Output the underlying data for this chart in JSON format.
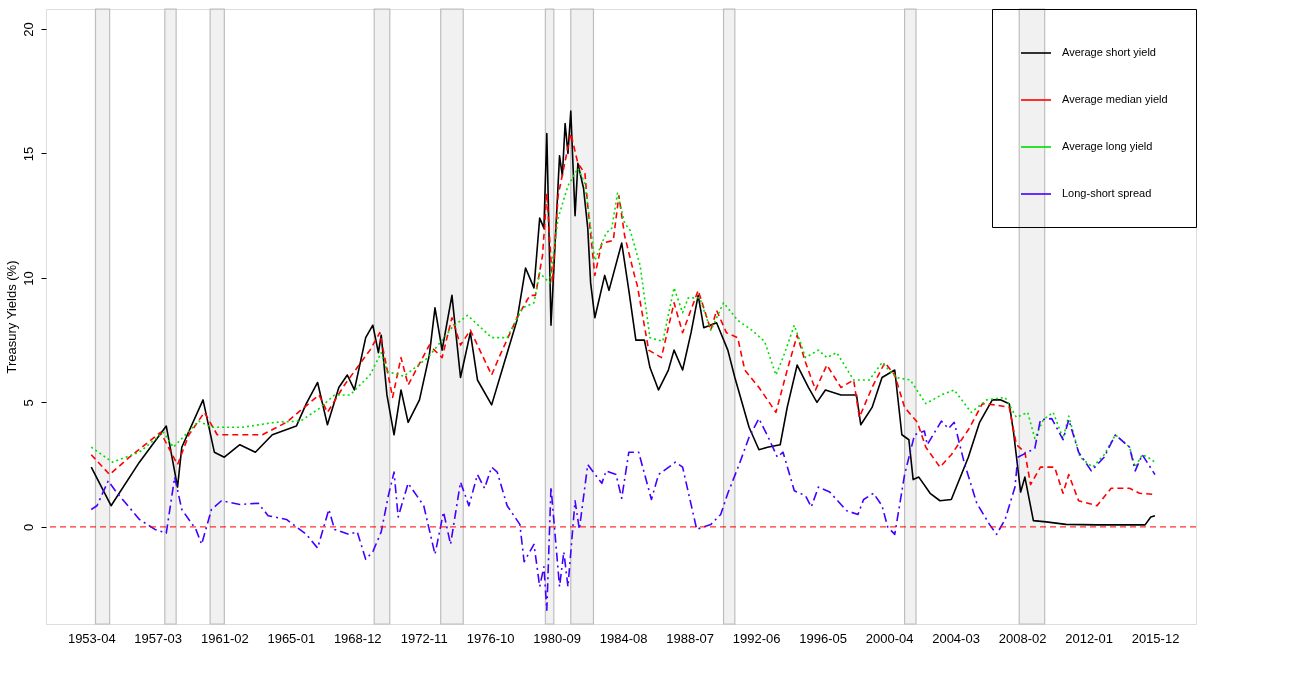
{
  "chart_data": {
    "type": "line",
    "ylabel": "Treasury Yields (%)",
    "xlim": [
      "1950-08",
      "2018-05"
    ],
    "ylim": [
      -3.9,
      20.8
    ],
    "yticks": [
      0,
      5,
      10,
      15,
      20
    ],
    "xticks": [
      "1953-04",
      "1957-03",
      "1961-02",
      "1965-01",
      "1968-12",
      "1972-11",
      "1976-10",
      "1980-09",
      "1984-08",
      "1988-07",
      "1992-06",
      "1996-05",
      "2000-04",
      "2004-03",
      "2008-02",
      "2012-01",
      "2015-12"
    ],
    "grid": false,
    "legend": "top right",
    "ref_lines": [
      {
        "axis": "y",
        "value": 0,
        "color": "#ff0000",
        "line_style": "dashed"
      }
    ],
    "bands": [
      {
        "axis": "x",
        "from": "1953-07",
        "to": "1954-05",
        "color": "#bebebe"
      },
      {
        "axis": "x",
        "from": "1957-08",
        "to": "1958-04",
        "color": "#bebebe"
      },
      {
        "axis": "x",
        "from": "1960-04",
        "to": "1961-02",
        "color": "#bebebe"
      },
      {
        "axis": "x",
        "from": "1969-12",
        "to": "1970-11",
        "color": "#bebebe"
      },
      {
        "axis": "x",
        "from": "1973-11",
        "to": "1975-03",
        "color": "#bebebe"
      },
      {
        "axis": "x",
        "from": "1980-01",
        "to": "1980-07",
        "color": "#bebebe"
      },
      {
        "axis": "x",
        "from": "1981-07",
        "to": "1982-11",
        "color": "#bebebe"
      },
      {
        "axis": "x",
        "from": "1990-07",
        "to": "1991-03",
        "color": "#bebebe"
      },
      {
        "axis": "x",
        "from": "2001-03",
        "to": "2001-11",
        "color": "#bebebe"
      },
      {
        "axis": "x",
        "from": "2007-12",
        "to": "2009-06",
        "color": "#bebebe"
      }
    ],
    "series": [
      {
        "name": "Average short yield",
        "color": "#000000",
        "line_style": "solid",
        "x": [
          "1953-04",
          "1954-06",
          "1956-02",
          "1957-09",
          "1958-05",
          "1958-08",
          "1959-11",
          "1960-07",
          "1961-02",
          "1962-01",
          "1962-12",
          "1963-12",
          "1965-05",
          "1965-12",
          "1966-08",
          "1967-03",
          "1967-11",
          "1968-05",
          "1968-10",
          "1969-06",
          "1969-11",
          "1970-03",
          "1970-05",
          "1970-09",
          "1971-02",
          "1971-07",
          "1971-12",
          "1972-08",
          "1973-03",
          "1973-07",
          "1973-12",
          "1974-07",
          "1975-01",
          "1975-08",
          "1976-01",
          "1976-11",
          "1977-08",
          "1978-05",
          "1978-11",
          "1979-05",
          "1979-09",
          "1979-12",
          "1980-02",
          "1980-05",
          "1980-11",
          "1981-01",
          "1981-03",
          "1981-05",
          "1981-07",
          "1981-10",
          "1981-12",
          "1982-04",
          "1982-07",
          "1982-09",
          "1982-12",
          "1983-07",
          "1983-10",
          "1984-07",
          "1984-12",
          "1985-05",
          "1985-11",
          "1986-03",
          "1986-09",
          "1987-04",
          "1987-08",
          "1988-02",
          "1988-08",
          "1989-01",
          "1989-05",
          "1990-02",
          "1990-10",
          "1991-03",
          "1992-01",
          "1992-08",
          "1993-02",
          "1993-11",
          "1994-04",
          "1994-11",
          "1995-07",
          "1996-01",
          "1996-07",
          "1997-06",
          "1998-05",
          "1998-08",
          "1999-04",
          "1999-11",
          "2000-08",
          "2001-01",
          "2001-06",
          "2001-09",
          "2002-01",
          "2002-09",
          "2003-04",
          "2003-12",
          "2004-12",
          "2005-08",
          "2006-05",
          "2006-11",
          "2007-05",
          "2007-08",
          "2008-01",
          "2008-04",
          "2008-10",
          "2009-07",
          "2010-09",
          "2012-07",
          "2015-05",
          "2015-09",
          "2015-12"
        ],
        "values": [
          2.4,
          0.85,
          2.6,
          4.05,
          1.6,
          3.2,
          5.1,
          3.0,
          2.8,
          3.3,
          3.0,
          3.7,
          4.05,
          4.95,
          5.8,
          4.1,
          5.6,
          6.1,
          5.5,
          7.6,
          8.1,
          7.0,
          7.7,
          5.3,
          3.7,
          5.5,
          4.2,
          5.1,
          6.9,
          8.8,
          7.1,
          9.3,
          6.0,
          7.8,
          5.9,
          4.9,
          6.6,
          8.3,
          10.4,
          9.6,
          12.4,
          12.0,
          15.8,
          8.1,
          14.9,
          14.1,
          16.2,
          15.0,
          16.7,
          12.5,
          14.6,
          13.6,
          12.0,
          9.8,
          8.4,
          10.1,
          9.5,
          11.4,
          9.5,
          7.5,
          7.5,
          6.4,
          5.5,
          6.3,
          7.1,
          6.3,
          7.8,
          9.3,
          8.0,
          8.2,
          7.1,
          6.0,
          4.0,
          3.1,
          3.2,
          3.3,
          4.8,
          6.5,
          5.6,
          5.0,
          5.5,
          5.3,
          5.3,
          4.1,
          4.8,
          6.0,
          6.3,
          3.7,
          3.5,
          1.9,
          2.0,
          1.35,
          1.05,
          1.1,
          2.8,
          4.2,
          5.1,
          5.1,
          4.95,
          3.8,
          1.4,
          2.0,
          0.25,
          0.2,
          0.1,
          0.08,
          0.08,
          0.4,
          0.45
        ]
      },
      {
        "name": "Average median yield",
        "color": "#ff0000",
        "line_style": "dashed",
        "x": [
          "1953-04",
          "1954-05",
          "1955-07",
          "1957-05",
          "1958-05",
          "1959-01",
          "1959-12",
          "1960-09",
          "1962-03",
          "1963-05",
          "1964-10",
          "1966-09",
          "1967-03",
          "1968-03",
          "1969-09",
          "1970-04",
          "1971-01",
          "1971-07",
          "1971-12",
          "1973-03",
          "1973-12",
          "1974-07",
          "1975-01",
          "1975-08",
          "1976-11",
          "1977-05",
          "1978-05",
          "1979-02",
          "1979-06",
          "1979-11",
          "1980-02",
          "1980-06",
          "1980-10",
          "1981-07",
          "1981-12",
          "1982-05",
          "1982-07",
          "1982-12",
          "1983-05",
          "1984-01",
          "1984-05",
          "1984-09",
          "1985-04",
          "1985-06",
          "1986-02",
          "1986-11",
          "1987-08",
          "1988-02",
          "1989-01",
          "1989-10",
          "1990-02",
          "1990-09",
          "1991-05",
          "1991-10",
          "1992-08",
          "1993-02",
          "1993-08",
          "1994-04",
          "1994-11",
          "1995-05",
          "1995-12",
          "1996-08",
          "1997-06",
          "1998-03",
          "1998-07",
          "1999-04",
          "2000-01",
          "2000-08",
          "2001-03",
          "2001-12",
          "2002-06",
          "2003-04",
          "2003-12",
          "2004-12",
          "2005-10",
          "2006-07",
          "2007-05",
          "2007-10",
          "2008-04",
          "2008-08",
          "2009-03",
          "2010-01",
          "2010-07",
          "2010-11",
          "2011-06",
          "2012-07",
          "2013-05",
          "2014-06",
          "2015-01",
          "2015-12"
        ],
        "values": [
          2.9,
          2.1,
          2.8,
          3.8,
          2.5,
          3.7,
          4.6,
          3.7,
          3.7,
          3.7,
          4.2,
          5.3,
          4.6,
          5.7,
          7.1,
          7.8,
          5.2,
          6.8,
          5.7,
          7.3,
          6.8,
          8.4,
          7.3,
          7.9,
          6.1,
          6.9,
          8.4,
          9.3,
          9.3,
          10.9,
          13.4,
          9.8,
          13.3,
          15.8,
          14.6,
          14.2,
          12.9,
          10.1,
          11.4,
          11.5,
          13.3,
          11.7,
          10.1,
          9.7,
          7.1,
          6.8,
          9.0,
          7.8,
          9.5,
          7.9,
          8.7,
          7.8,
          7.6,
          6.3,
          5.6,
          5.1,
          4.6,
          6.3,
          7.7,
          6.6,
          5.5,
          6.5,
          5.6,
          5.9,
          4.4,
          5.6,
          6.6,
          6.1,
          4.8,
          4.2,
          3.2,
          2.4,
          2.9,
          3.9,
          4.95,
          4.9,
          4.8,
          3.3,
          3.0,
          1.7,
          2.4,
          2.4,
          1.35,
          2.1,
          1.05,
          0.85,
          1.55,
          1.55,
          1.35,
          1.3
        ]
      },
      {
        "name": "Average long yield",
        "color": "#00dd00",
        "line_style": "dotted",
        "x": [
          "1953-04",
          "1954-07",
          "1956-02",
          "1957-07",
          "1958-02",
          "1959-08",
          "1960-05",
          "1962-03",
          "1964-02",
          "1965-08",
          "1966-09",
          "1967-08",
          "1968-07",
          "1969-09",
          "1970-05",
          "1970-09",
          "1971-09",
          "1973-02",
          "1974-07",
          "1975-06",
          "1976-11",
          "1977-10",
          "1978-09",
          "1979-05",
          "1979-09",
          "1980-04",
          "1980-10",
          "1981-05",
          "1981-12",
          "1982-05",
          "1982-12",
          "1983-08",
          "1983-12",
          "1984-04",
          "1984-09",
          "1985-01",
          "1985-08",
          "1986-03",
          "1986-12",
          "1987-08",
          "1988-02",
          "1988-06",
          "1989-02",
          "1989-10",
          "1990-07",
          "1991-05",
          "1992-03",
          "1992-12",
          "1993-08",
          "1994-01",
          "1994-09",
          "1995-05",
          "1996-02",
          "1996-08",
          "1997-03",
          "1998-03",
          "1999-02",
          "1999-11",
          "2000-09",
          "2001-07",
          "2002-06",
          "2003-05",
          "2004-02",
          "2005-02",
          "2006-01",
          "2007-02",
          "2007-10",
          "2008-06",
          "2008-11",
          "2009-05",
          "2009-12",
          "2010-07",
          "2010-11",
          "2011-07",
          "2012-04",
          "2012-12",
          "2013-08",
          "2014-06",
          "2014-10",
          "2015-03",
          "2015-07",
          "2015-12"
        ],
        "values": [
          3.2,
          2.6,
          3.0,
          3.8,
          3.2,
          4.25,
          4.0,
          4.0,
          4.2,
          4.25,
          4.75,
          5.3,
          5.3,
          6.1,
          7.0,
          6.25,
          6.05,
          6.8,
          8.0,
          8.5,
          7.6,
          7.6,
          8.8,
          9.0,
          10.2,
          9.8,
          12.4,
          13.7,
          14.4,
          13.8,
          10.7,
          11.8,
          12.0,
          13.4,
          12.2,
          11.9,
          10.5,
          7.6,
          7.45,
          9.6,
          8.6,
          9.2,
          9.2,
          7.9,
          9.0,
          8.3,
          7.9,
          7.45,
          6.1,
          6.8,
          8.1,
          6.8,
          7.1,
          6.8,
          7.0,
          5.9,
          5.9,
          6.6,
          6.0,
          5.9,
          4.95,
          5.3,
          5.5,
          4.6,
          5.1,
          5.2,
          4.4,
          4.6,
          3.55,
          4.3,
          4.6,
          3.55,
          4.45,
          2.8,
          2.4,
          2.9,
          3.7,
          3.2,
          2.4,
          2.9,
          2.8,
          2.6
        ]
      },
      {
        "name": "Long-short spread",
        "color": "#4400ff",
        "line_style": "dashdot",
        "x": [
          "1953-04",
          "1953-08",
          "1954-04",
          "1954-09",
          "1956-02",
          "1957-01",
          "1957-09",
          "1958-03",
          "1958-08",
          "1959-06",
          "1959-10",
          "1960-05",
          "1960-12",
          "1962-01",
          "1963-02",
          "1963-09",
          "1964-10",
          "1965-12",
          "1966-08",
          "1967-04",
          "1967-08",
          "1968-06",
          "1968-12",
          "1969-06",
          "1969-11",
          "1970-05",
          "1970-10",
          "1971-02",
          "1971-05",
          "1971-12",
          "1972-11",
          "1973-07",
          "1974-01",
          "1974-06",
          "1975-01",
          "1975-07",
          "1976-01",
          "1976-06",
          "1976-11",
          "1977-03",
          "1977-10",
          "1978-07",
          "1978-10",
          "1979-05",
          "1979-09",
          "1979-12",
          "1980-02",
          "1980-05",
          "1980-11",
          "1981-02",
          "1981-05",
          "1981-10",
          "1982-01",
          "1982-07",
          "1983-05",
          "1983-08",
          "1984-03",
          "1984-07",
          "1984-12",
          "1985-07",
          "1986-04",
          "1986-09",
          "1987-09",
          "1988-02",
          "1988-12",
          "1989-10",
          "1990-05",
          "1990-10",
          "1991-06",
          "1992-01",
          "1992-08",
          "1993-03",
          "1993-09",
          "1994-01",
          "1994-09",
          "1995-05",
          "1995-09",
          "1996-02",
          "1996-10",
          "1997-10",
          "1998-06",
          "1998-10",
          "1999-05",
          "1999-11",
          "2000-03",
          "2000-08",
          "2001-03",
          "2001-10",
          "2002-05",
          "2002-07",
          "2003-05",
          "2003-10",
          "2004-02",
          "2004-09",
          "2005-06",
          "2006-03",
          "2006-08",
          "2007-02",
          "2007-09",
          "2007-11",
          "2008-06",
          "2008-11",
          "2009-03",
          "2009-11",
          "2010-07",
          "2010-11",
          "2011-06",
          "2012-03",
          "2012-12",
          "2013-08",
          "2014-06",
          "2014-10",
          "2015-03",
          "2015-12"
        ],
        "values": [
          0.7,
          0.85,
          1.85,
          1.45,
          0.3,
          -0.1,
          -0.25,
          2.0,
          0.7,
          -0.1,
          -0.7,
          0.7,
          1.05,
          0.9,
          0.95,
          0.45,
          0.3,
          -0.3,
          -0.85,
          0.7,
          -0.1,
          -0.3,
          -0.2,
          -1.3,
          -1.0,
          -0.2,
          1.25,
          2.2,
          0.4,
          1.75,
          0.85,
          -1.1,
          0.6,
          -0.7,
          1.8,
          0.85,
          2.1,
          1.55,
          2.4,
          2.2,
          0.85,
          0.1,
          -1.4,
          -0.7,
          -2.4,
          -1.6,
          -3.35,
          1.6,
          -2.4,
          -1.0,
          -2.4,
          1.05,
          -0.1,
          2.5,
          1.75,
          2.25,
          2.1,
          1.15,
          3.0,
          3.0,
          1.1,
          2.1,
          2.6,
          2.4,
          -0.1,
          0.1,
          0.5,
          1.35,
          2.5,
          3.6,
          4.35,
          3.55,
          2.8,
          3.0,
          1.45,
          1.25,
          0.8,
          1.6,
          1.4,
          0.65,
          0.5,
          1.1,
          1.35,
          0.85,
          0.0,
          -0.3,
          2.1,
          3.7,
          3.85,
          3.3,
          4.25,
          3.95,
          4.2,
          2.6,
          0.95,
          0.1,
          -0.3,
          0.3,
          1.6,
          2.8,
          3.0,
          3.15,
          4.3,
          4.35,
          3.5,
          4.3,
          3.0,
          2.25,
          2.8,
          3.7,
          3.2,
          2.25,
          2.9,
          2.1
        ]
      }
    ]
  }
}
